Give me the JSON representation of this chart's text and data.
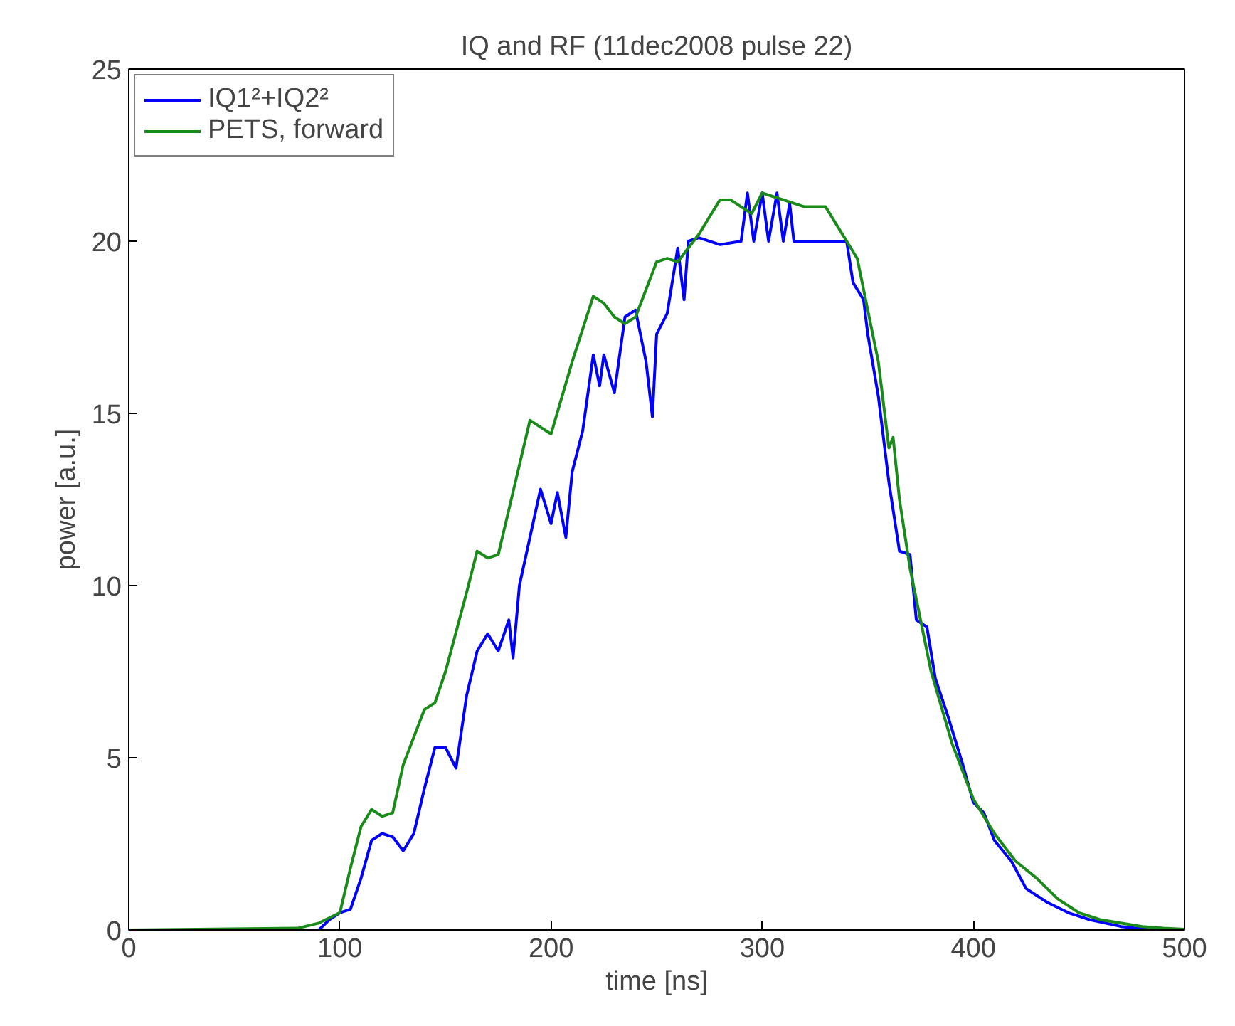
{
  "chart_data": {
    "type": "line",
    "title": "IQ and RF (11dec2008 pulse 22)",
    "xlabel": "time [ns]",
    "ylabel": "power [a.u.]",
    "xlim": [
      0,
      500
    ],
    "ylim": [
      0,
      25
    ],
    "xticks": [
      0,
      100,
      200,
      300,
      400,
      500
    ],
    "yticks": [
      0,
      5,
      10,
      15,
      20,
      25
    ],
    "grid": false,
    "legend": "top left",
    "line_style": "solid",
    "marker": "none",
    "series": [
      {
        "name": "IQ1²+IQ2²",
        "color": "#0000ff",
        "x": [
          0,
          90,
          95,
          100,
          105,
          110,
          115,
          120,
          125,
          130,
          135,
          140,
          145,
          150,
          155,
          160,
          165,
          170,
          175,
          180,
          182,
          185,
          190,
          195,
          200,
          203,
          207,
          210,
          215,
          220,
          223,
          225,
          230,
          235,
          240,
          245,
          248,
          250,
          255,
          260,
          263,
          265,
          270,
          280,
          290,
          293,
          296,
          300,
          303,
          307,
          310,
          313,
          315,
          330,
          340,
          343,
          348,
          350,
          355,
          360,
          365,
          370,
          373,
          378,
          382,
          388,
          395,
          400,
          405,
          410,
          418,
          425,
          435,
          445,
          455,
          470,
          485,
          500
        ],
        "values": [
          0,
          0,
          0.3,
          0.5,
          0.6,
          1.5,
          2.6,
          2.8,
          2.7,
          2.3,
          2.8,
          4.1,
          5.3,
          5.3,
          4.7,
          6.8,
          8.1,
          8.6,
          8.1,
          9.0,
          7.9,
          10.0,
          11.4,
          12.8,
          11.8,
          12.7,
          11.4,
          13.3,
          14.5,
          16.7,
          15.8,
          16.7,
          15.6,
          17.8,
          18.0,
          16.5,
          14.9,
          17.3,
          17.9,
          19.8,
          18.3,
          20.0,
          20.1,
          19.9,
          20.0,
          21.4,
          20.0,
          21.4,
          20.0,
          21.4,
          20.0,
          21.1,
          20.0,
          20.0,
          20.0,
          18.8,
          18.3,
          17.3,
          15.5,
          13.0,
          11.0,
          10.9,
          9.0,
          8.8,
          7.3,
          6.2,
          4.8,
          3.7,
          3.4,
          2.6,
          2.0,
          1.2,
          0.8,
          0.5,
          0.3,
          0.1,
          0.0,
          0.0
        ]
      },
      {
        "name": "PETS, forward",
        "color": "#1a8a1a",
        "x": [
          0,
          80,
          90,
          100,
          105,
          110,
          115,
          120,
          125,
          130,
          140,
          145,
          150,
          160,
          165,
          170,
          175,
          185,
          190,
          195,
          200,
          210,
          220,
          225,
          230,
          235,
          240,
          250,
          255,
          260,
          270,
          280,
          285,
          295,
          300,
          310,
          320,
          330,
          340,
          345,
          350,
          355,
          360,
          362,
          365,
          370,
          380,
          390,
          400,
          410,
          420,
          430,
          440,
          450,
          460,
          480,
          490,
          500
        ],
        "values": [
          0,
          0.05,
          0.2,
          0.5,
          1.8,
          3.0,
          3.5,
          3.3,
          3.4,
          4.8,
          6.4,
          6.6,
          7.5,
          9.8,
          11.0,
          10.8,
          10.9,
          13.5,
          14.8,
          14.6,
          14.4,
          16.5,
          18.4,
          18.2,
          17.8,
          17.6,
          17.8,
          19.4,
          19.5,
          19.4,
          20.2,
          21.2,
          21.2,
          20.8,
          21.4,
          21.2,
          21.0,
          21.0,
          20.0,
          19.5,
          18.0,
          16.5,
          14.0,
          14.3,
          12.5,
          10.5,
          7.5,
          5.4,
          3.8,
          2.8,
          2.0,
          1.5,
          0.9,
          0.5,
          0.3,
          0.1,
          0.05,
          0.02
        ]
      }
    ]
  }
}
